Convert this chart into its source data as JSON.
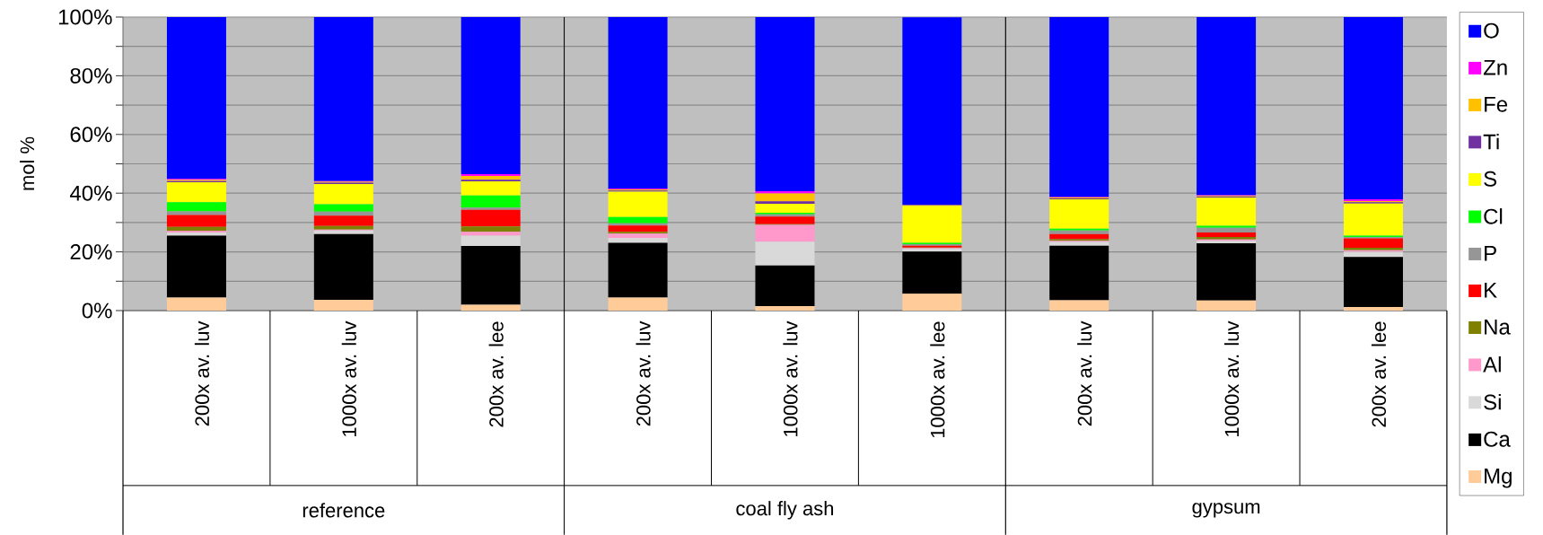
{
  "chart_data": {
    "type": "bar",
    "stacked": true,
    "ylabel": "mol %",
    "categories": [
      "200x av. luv",
      "1000x av. luv",
      "200x av. lee",
      "200x av. luv",
      "1000x av. luv",
      "1000x av. lee",
      "200x av. luv",
      "1000x av. luv",
      "200x av. lee"
    ],
    "annotations": [
      "reference",
      "coal fly ash",
      "gypsum"
    ],
    "series": [
      {
        "name": "Mg",
        "color": "#ffcc99",
        "values": [
          4.4,
          3.7,
          2.0,
          4.4,
          1.5,
          5.7,
          3.5,
          3.4,
          1.2
        ]
      },
      {
        "name": "Ca",
        "color": "#000000",
        "values": [
          21.1,
          22.4,
          20.0,
          18.7,
          13.9,
          14.4,
          18.6,
          19.5,
          17.1
        ]
      },
      {
        "name": "Si",
        "color": "#d9d9d9",
        "values": [
          1.1,
          1.2,
          3.5,
          1.7,
          8.1,
          0.9,
          1.3,
          0.9,
          1.7
        ]
      },
      {
        "name": "Al",
        "color": "#ff99cc",
        "values": [
          0.5,
          0.3,
          1.3,
          1.4,
          5.7,
          0.3,
          0.4,
          0.4,
          0.6
        ]
      },
      {
        "name": "Na",
        "color": "#808000",
        "values": [
          1.4,
          1.2,
          1.9,
          0.6,
          0.2,
          0.2,
          0.5,
          0.9,
          0.8
        ]
      },
      {
        "name": "K",
        "color": "#ff0000",
        "values": [
          4.1,
          3.5,
          5.6,
          2.2,
          2.6,
          0.6,
          1.8,
          1.5,
          3.2
        ]
      },
      {
        "name": "P",
        "color": "#969696",
        "values": [
          1.2,
          1.4,
          0.8,
          0.7,
          0.8,
          0.5,
          1.2,
          1.6,
          0.5
        ]
      },
      {
        "name": "Cl",
        "color": "#00ff00",
        "values": [
          3.1,
          2.5,
          4.1,
          2.2,
          0.5,
          0.5,
          0.6,
          0.7,
          0.4
        ]
      },
      {
        "name": "S",
        "color": "#ffff00",
        "values": [
          6.8,
          6.9,
          4.8,
          8.6,
          3.1,
          12.6,
          10.0,
          9.6,
          11.0
        ]
      },
      {
        "name": "Ti",
        "color": "#7030a0",
        "values": [
          0.4,
          0.5,
          0.6,
          0.4,
          0.8,
          0.2,
          0.3,
          0.3,
          0.4
        ]
      },
      {
        "name": "Fe",
        "color": "#ffc000",
        "values": [
          0.4,
          0.3,
          1.3,
          0.4,
          2.7,
          0.2,
          0.3,
          0.3,
          0.4
        ]
      },
      {
        "name": "Zn",
        "color": "#ff00ff",
        "values": [
          0.4,
          0.2,
          0.6,
          0.3,
          0.8,
          null,
          0.2,
          0.2,
          0.6
        ]
      },
      {
        "name": "O",
        "color": "#0000ff",
        "values": [
          55.1,
          55.9,
          53.5,
          58.4,
          59.3,
          63.8,
          61.3,
          60.7,
          62.1
        ]
      }
    ],
    "ylim": [
      0,
      100
    ],
    "yticks": [
      {
        "value": 0,
        "label": "0%"
      },
      {
        "value": 10,
        "label": null
      },
      {
        "value": 20,
        "label": "20%"
      },
      {
        "value": 30,
        "label": null
      },
      {
        "value": 40,
        "label": "40%"
      },
      {
        "value": 50,
        "label": null
      },
      {
        "value": 60,
        "label": "60%"
      },
      {
        "value": 70,
        "label": null
      },
      {
        "value": 80,
        "label": "80%"
      },
      {
        "value": 90,
        "label": null
      },
      {
        "value": 100,
        "label": "100%"
      }
    ],
    "grid": "y",
    "legend": "right"
  }
}
